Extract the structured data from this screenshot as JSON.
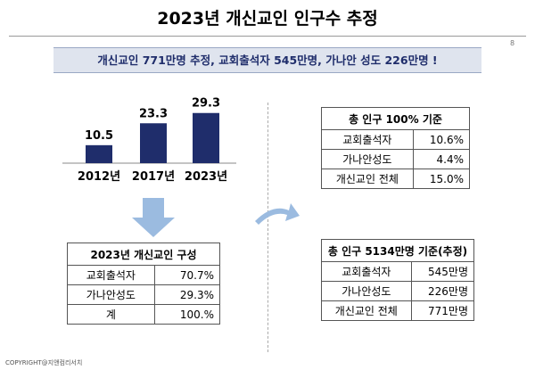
{
  "header": {
    "title": "2023년 개신교인 인구수 추정",
    "page": "8"
  },
  "banner": "개신교인 771만명 추정, 교회출석자 545만명, 가나안 성도 226만명 !",
  "chart_data": {
    "type": "bar",
    "categories": [
      "2012년",
      "2017년",
      "2023년"
    ],
    "values": [
      10.5,
      23.3,
      29.3
    ],
    "color": "#1f2d6b"
  },
  "table_composition": {
    "title": "2023년 개신교인 구성",
    "rows": [
      [
        "교회출석자",
        "70.7%"
      ],
      [
        "가나안성도",
        "29.3%"
      ],
      [
        "계",
        "100.%"
      ]
    ]
  },
  "table_total_pct": {
    "title": "총 인구 100% 기준",
    "rows": [
      [
        "교회출석자",
        "10.6%"
      ],
      [
        "가나안성도",
        "4.4%"
      ],
      [
        "개신교인 전체",
        "15.0%"
      ]
    ]
  },
  "table_total_count": {
    "title": "총 인구 5134만명 기준(추정)",
    "rows": [
      [
        "교회출석자",
        "545만명"
      ],
      [
        "가나안성도",
        "226만명"
      ],
      [
        "개신교인 전체",
        "771만명"
      ]
    ]
  },
  "footer": "COPYRIGHT@지앤컴리서치"
}
